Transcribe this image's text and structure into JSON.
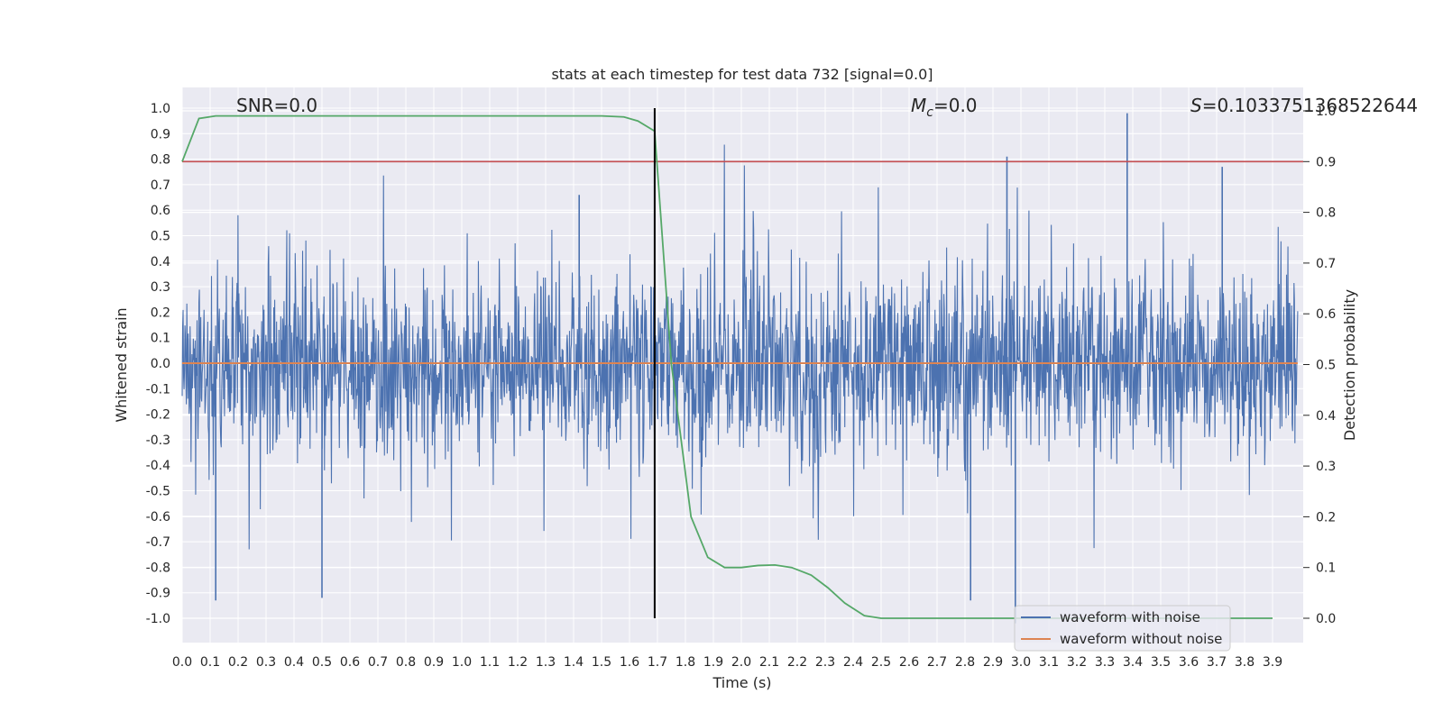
{
  "chart_data": {
    "type": "line",
    "title": "stats at each timestep for test data 732 [signal=0.0]",
    "xlabel": "Time (s)",
    "ylabel": "Whitened strain",
    "y2label": "Detection probability",
    "xlim": [
      0.0,
      4.0
    ],
    "ylim": [
      -1.1,
      1.1
    ],
    "y2lim": [
      -0.05,
      1.0
    ],
    "x_ticks": [
      "0.0",
      "0.1",
      "0.2",
      "0.3",
      "0.4",
      "0.5",
      "0.6",
      "0.7",
      "0.8",
      "0.9",
      "1.0",
      "1.1",
      "1.2",
      "1.3",
      "1.4",
      "1.5",
      "1.6",
      "1.7",
      "1.8",
      "1.9",
      "2.0",
      "2.1",
      "2.2",
      "2.3",
      "2.4",
      "2.5",
      "2.6",
      "2.7",
      "2.8",
      "2.9",
      "3.0",
      "3.1",
      "3.2",
      "3.3",
      "3.4",
      "3.5",
      "3.6",
      "3.7",
      "3.8",
      "3.9"
    ],
    "y_ticks": [
      "1.0",
      "0.9",
      "0.8",
      "0.7",
      "0.6",
      "0.5",
      "0.4",
      "0.3",
      "0.2",
      "0.1",
      "0.0",
      "-0.1",
      "-0.2",
      "-0.3",
      "-0.4",
      "-0.5",
      "-0.6",
      "-0.7",
      "-0.8",
      "-0.9",
      "-1.0"
    ],
    "y2_ticks": [
      "1.0",
      "0.9",
      "0.8",
      "0.7",
      "0.6",
      "0.5",
      "0.4",
      "0.3",
      "0.2",
      "0.1",
      "0.0"
    ],
    "grid": true,
    "legend_position": "bottom-right",
    "annotations": {
      "snr": "SNR=0.0",
      "mc_symbol": "M",
      "mc_sub": "c",
      "mc_value": "=0.0",
      "s_symbol": "S",
      "s_value": "=0.1033751368522644"
    },
    "series": [
      {
        "name": "waveform with noise",
        "color": "#4c72b0",
        "description_peaks": [
          [
            0.12,
            -0.93
          ],
          [
            0.5,
            -0.92
          ],
          [
            1.42,
            0.66
          ],
          [
            2.95,
            0.81
          ],
          [
            3.38,
            0.98
          ],
          [
            3.72,
            0.77
          ],
          [
            2.82,
            -0.93
          ],
          [
            2.98,
            -1.02
          ]
        ]
      },
      {
        "name": "waveform without noise",
        "color": "#dd8452",
        "value": 0.0
      }
    ],
    "detection_probability": {
      "color": "#55a868",
      "x": [
        0.0,
        0.06,
        0.12,
        0.2,
        0.4,
        0.8,
        1.2,
        1.5,
        1.58,
        1.63,
        1.69,
        1.75,
        1.82,
        1.88,
        1.94,
        2.0,
        2.06,
        2.12,
        2.18,
        2.25,
        2.31,
        2.37,
        2.44,
        2.5,
        2.6,
        2.8,
        3.0,
        3.5,
        3.9
      ],
      "y": [
        0.9,
        0.985,
        0.99,
        0.99,
        0.99,
        0.99,
        0.99,
        0.99,
        0.988,
        0.98,
        0.96,
        0.5,
        0.2,
        0.12,
        0.1,
        0.1,
        0.104,
        0.105,
        0.1,
        0.085,
        0.06,
        0.03,
        0.005,
        0.0,
        0.0,
        0.0,
        0.0,
        0.0,
        0.0
      ]
    },
    "threshold_line": {
      "color": "#c44e52",
      "value": 0.9
    },
    "marker_line": {
      "color": "#000000",
      "x": 1.69
    }
  }
}
